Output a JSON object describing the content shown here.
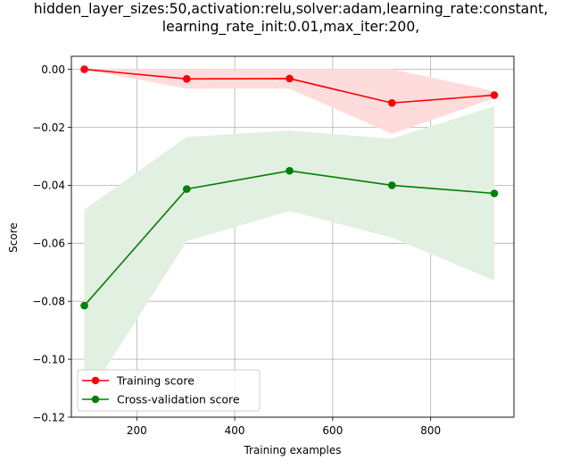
{
  "chart_data": {
    "type": "line",
    "title_line1": "hidden_layer_sizes:50,activation:relu,solver:adam,learning_rate:constant,",
    "title_line2": "learning_rate_init:0.01,max_iter:200,",
    "xlabel": "Training examples",
    "ylabel": "Score",
    "xlim": [
      66.5,
      970
    ],
    "ylim": [
      -0.12,
      0.0045
    ],
    "xticks": [
      200,
      400,
      600,
      800
    ],
    "xtick_labels": [
      "200",
      "400",
      "600",
      "800"
    ],
    "yticks": [
      0.0,
      -0.02,
      -0.04,
      -0.06,
      -0.08,
      -0.1,
      -0.12
    ],
    "ytick_labels": [
      "0.00",
      "−0.02",
      "−0.04",
      "−0.06",
      "−0.08",
      "−0.10",
      "−0.12"
    ],
    "grid": true,
    "legend_position": "bottom-left",
    "x": [
      93,
      302,
      512,
      721,
      930
    ],
    "series": [
      {
        "name": "Training score",
        "color": "#ff0000",
        "band_color": "#ffdcdc",
        "values": [
          0.0,
          -0.0033,
          -0.0032,
          -0.0116,
          -0.0089
        ],
        "upper": [
          0.0,
          0.0,
          0.0,
          0.0,
          -0.0076
        ],
        "lower": [
          0.0,
          -0.0066,
          -0.0066,
          -0.0222,
          -0.0099
        ]
      },
      {
        "name": "Cross-validation score",
        "color": "#008000",
        "band_color": "#e2f0e2",
        "values": [
          -0.0815,
          -0.0413,
          -0.035,
          -0.04,
          -0.0428
        ],
        "upper": [
          -0.0485,
          -0.0234,
          -0.0212,
          -0.024,
          -0.0128
        ],
        "lower": [
          -0.1145,
          -0.0592,
          -0.0488,
          -0.058,
          -0.0728
        ]
      }
    ]
  }
}
